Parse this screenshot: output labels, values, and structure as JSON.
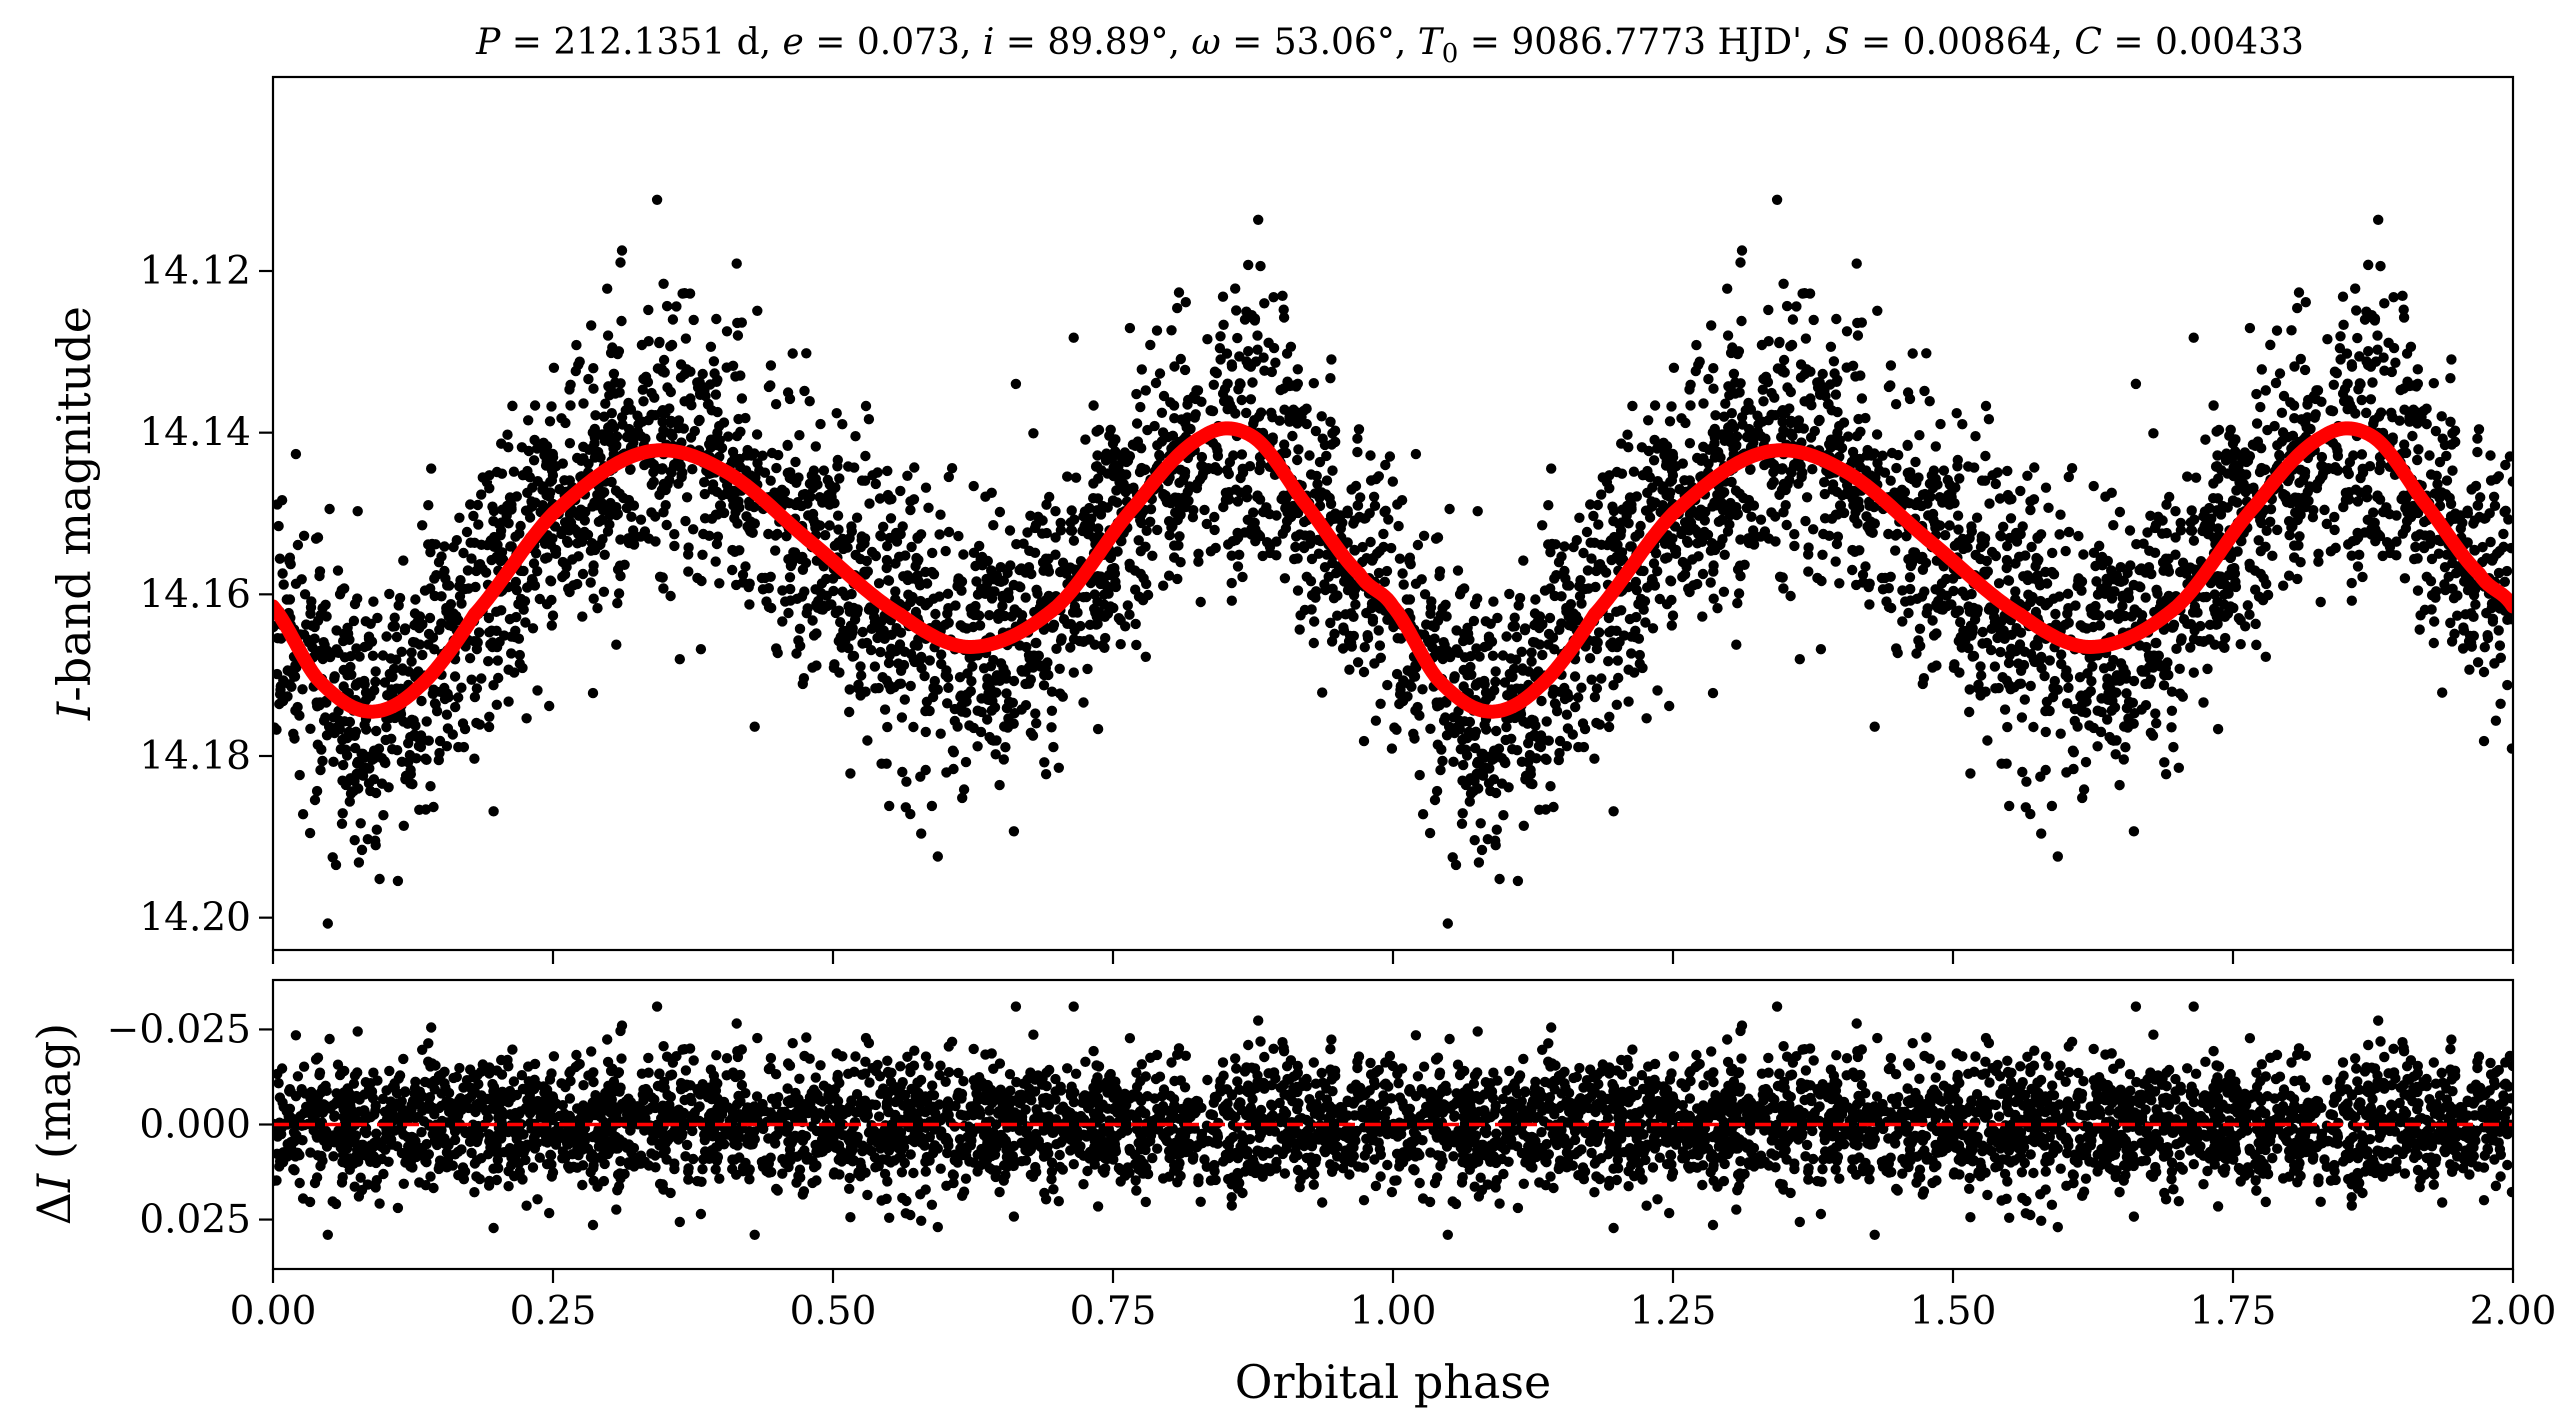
{
  "chart_data": [
    {
      "type": "scatter",
      "panel": "light-curve",
      "title": "P = 212.1351 d, e = 0.073, i = 89.89°, ω = 53.06°, T0 = 9086.7773 HJD', S = 0.00864, C = 0.00433",
      "xlabel": "Orbital phase",
      "ylabel": "I-band magnitude",
      "xlim": [
        0.0,
        2.0
      ],
      "ylim": [
        14.204,
        14.096
      ],
      "y_inverted": true,
      "xticks": [
        0.0,
        0.25,
        0.5,
        0.75,
        1.0,
        1.25,
        1.5,
        1.75,
        2.0
      ],
      "yticks": [
        14.12,
        14.14,
        14.16,
        14.18,
        14.2
      ],
      "ytick_labels": [
        "14.12",
        "14.14",
        "14.16",
        "14.18",
        "14.20"
      ],
      "grid": false,
      "legend": "none",
      "series": [
        {
          "kind": "points",
          "color": "#000000",
          "note_points": "dense photometric cloud; underlying model plus scatter, repeated over two phase cycles",
          "scatter_sigma_mag": 0.0085,
          "points_per_cycle": 2600
        },
        {
          "kind": "model-curve",
          "color": "#ff0000",
          "phase": [
            0.0,
            0.04,
            0.085,
            0.13,
            0.18,
            0.25,
            0.33,
            0.4,
            0.48,
            0.56,
            0.625,
            0.7,
            0.77,
            0.83,
            0.875,
            0.92,
            0.97,
            1.0
          ],
          "magnitude": [
            14.1615,
            14.1705,
            14.1745,
            14.1715,
            14.1625,
            14.15,
            14.1425,
            14.1445,
            14.1535,
            14.1625,
            14.1665,
            14.1615,
            14.149,
            14.1405,
            14.1405,
            14.1485,
            14.1575,
            14.1615
          ]
        }
      ]
    },
    {
      "type": "scatter",
      "panel": "residuals",
      "xlabel": "Orbital phase",
      "ylabel": "ΔI (mag)",
      "xlim": [
        0.0,
        2.0
      ],
      "ylim": [
        0.038,
        -0.038
      ],
      "y_inverted": true,
      "xticks": [
        0.0,
        0.25,
        0.5,
        0.75,
        1.0,
        1.25,
        1.5,
        1.75,
        2.0
      ],
      "xtick_labels": [
        "0.00",
        "0.25",
        "0.50",
        "0.75",
        "1.00",
        "1.25",
        "1.50",
        "1.75",
        "2.00"
      ],
      "yticks": [
        -0.025,
        0.0,
        0.025
      ],
      "ytick_labels": [
        "−0.025",
        "0.000",
        "0.025"
      ],
      "grid": false,
      "legend": "none",
      "series": [
        {
          "kind": "points",
          "color": "#000000",
          "scatter_sigma_mag": 0.0085
        },
        {
          "kind": "zero-line",
          "style": "dashed",
          "color": "#ff0000",
          "y": 0.0
        }
      ]
    }
  ]
}
